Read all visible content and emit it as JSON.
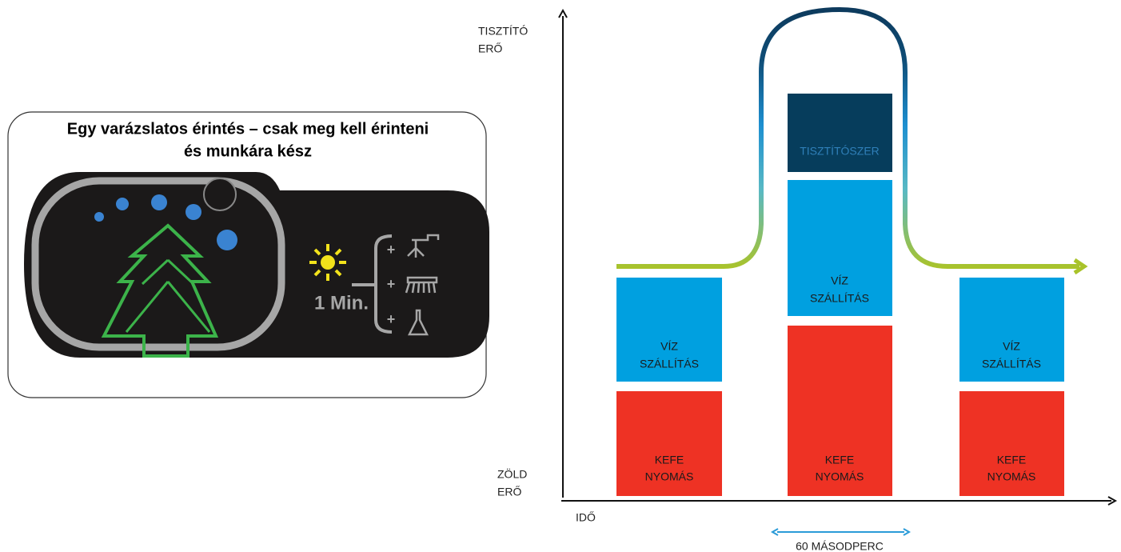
{
  "panel": {
    "title_lines": [
      "Egy varázslatos érintés – csak meg kell érinteni",
      "és munkára kész"
    ],
    "timer": "1 Min.",
    "plus_signs": [
      "+",
      "+",
      "+"
    ]
  },
  "diagram": {
    "y_axis_top": [
      "TISZTÍTÓ",
      "ERŐ"
    ],
    "y_axis_bottom": [
      "ZÖLD",
      "ERŐ"
    ],
    "x_axis": "IDŐ",
    "duration": "60 MÁSODPERC",
    "columns": [
      {
        "blocks": [
          {
            "lines": [
              "VÍZ",
              "SZÁLLÍTÁS"
            ]
          },
          {
            "lines": [
              "KEFE",
              "NYOMÁS"
            ]
          }
        ]
      },
      {
        "blocks": [
          {
            "lines": [
              "TISZTÍTÓSZER"
            ]
          },
          {
            "lines": [
              "VÍZ",
              "SZÁLLÍTÁS"
            ]
          },
          {
            "lines": [
              "KEFE",
              "NYOMÁS"
            ]
          }
        ]
      },
      {
        "blocks": [
          {
            "lines": [
              "VÍZ",
              "SZÁLLÍTÁS"
            ]
          },
          {
            "lines": [
              "KEFE",
              "NYOMÁS"
            ]
          }
        ]
      }
    ]
  }
}
